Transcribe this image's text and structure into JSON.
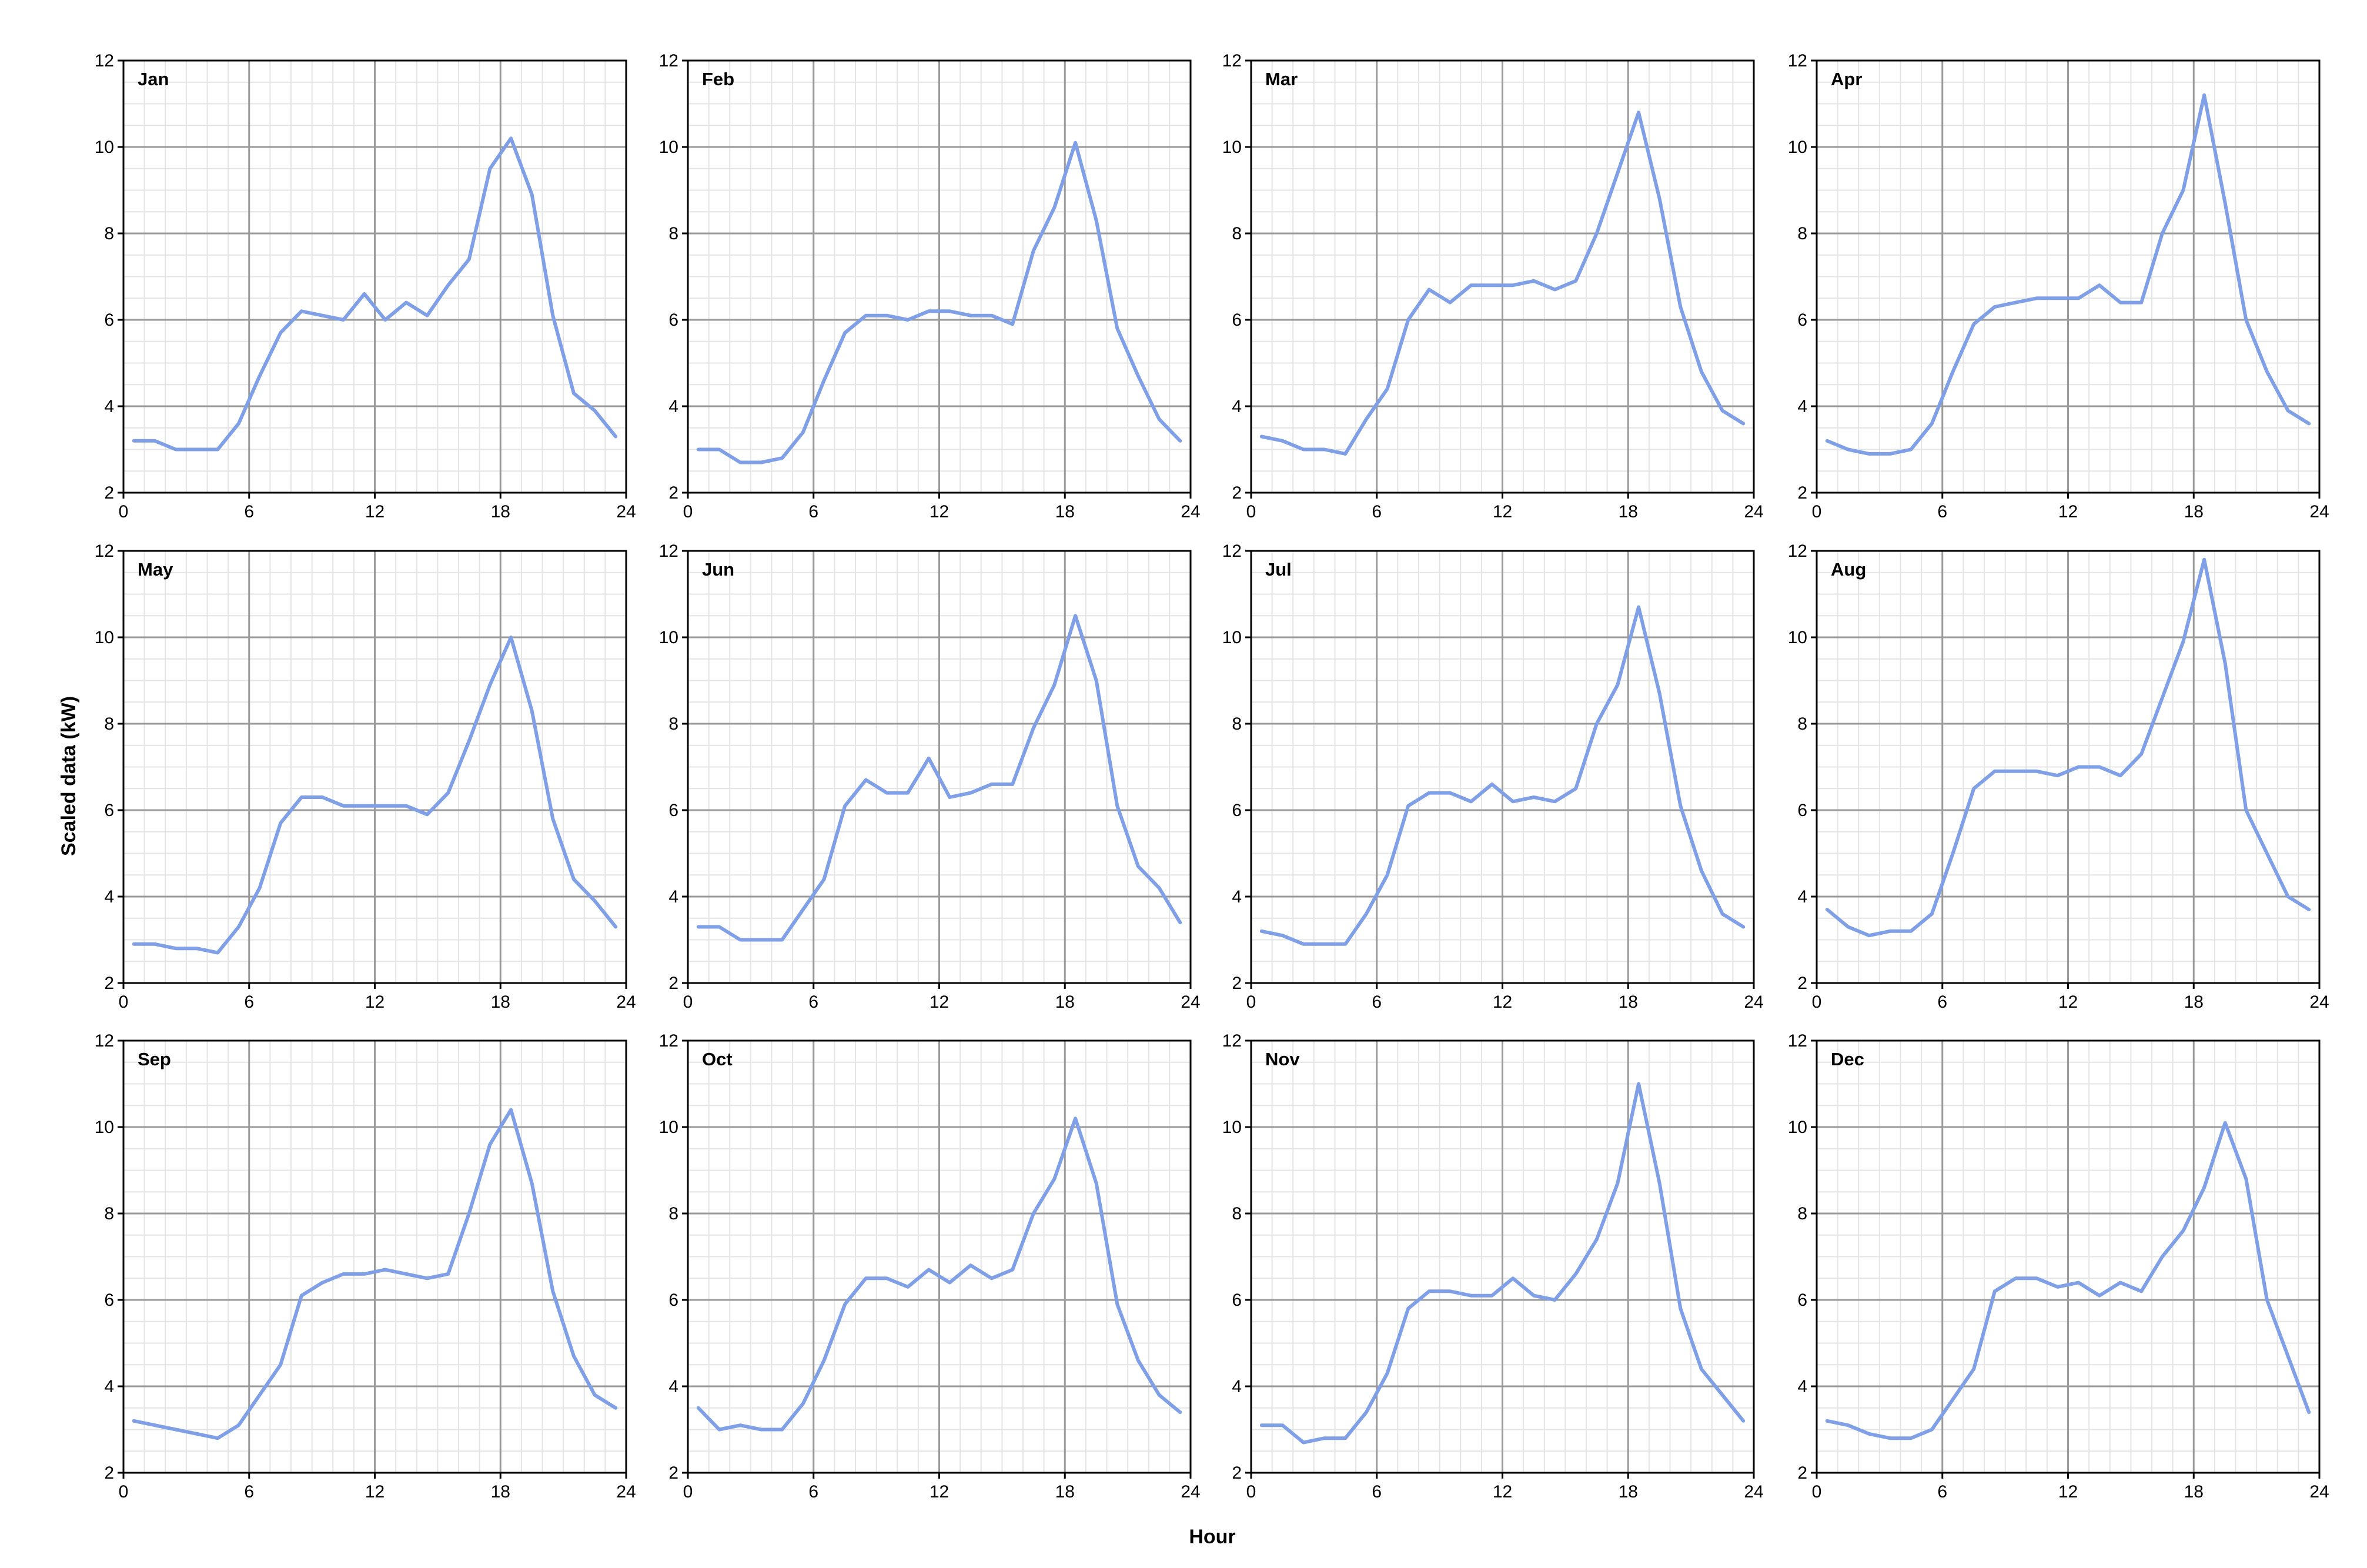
{
  "chart_data": {
    "type": "line",
    "layout": "small-multiples",
    "xlabel": "Hour",
    "ylabel": "Scaled data (kW)",
    "xlim": [
      0,
      24
    ],
    "ylim": [
      2,
      12
    ],
    "x_ticks": [
      0,
      6,
      12,
      18,
      24
    ],
    "y_ticks": [
      2,
      4,
      6,
      8,
      10,
      12
    ],
    "grid": true,
    "line_color": "#7f9fe6",
    "x": [
      0.5,
      1.5,
      2.5,
      3.5,
      4.5,
      5.5,
      6.5,
      7.5,
      8.5,
      9.5,
      10.5,
      11.5,
      12.5,
      13.5,
      14.5,
      15.5,
      16.5,
      17.5,
      18.5,
      19.5,
      20.5,
      21.5,
      22.5,
      23.5
    ],
    "panels": [
      {
        "title": "Jan",
        "values": [
          3.2,
          3.2,
          3.0,
          3.0,
          3.0,
          3.6,
          4.7,
          5.7,
          6.2,
          6.1,
          6.0,
          6.6,
          6.0,
          6.4,
          6.1,
          6.8,
          7.4,
          9.5,
          10.2,
          8.9,
          6.1,
          4.3,
          3.9,
          3.3
        ]
      },
      {
        "title": "Feb",
        "values": [
          3.0,
          3.0,
          2.7,
          2.7,
          2.8,
          3.4,
          4.6,
          5.7,
          6.1,
          6.1,
          6.0,
          6.2,
          6.2,
          6.1,
          6.1,
          5.9,
          7.6,
          8.6,
          10.1,
          8.3,
          5.8,
          4.7,
          3.7,
          3.2
        ]
      },
      {
        "title": "Mar",
        "values": [
          3.3,
          3.2,
          3.0,
          3.0,
          2.9,
          3.7,
          4.4,
          6.0,
          6.7,
          6.4,
          6.8,
          6.8,
          6.8,
          6.9,
          6.7,
          6.9,
          8.0,
          9.4,
          10.8,
          8.8,
          6.3,
          4.8,
          3.9,
          3.6
        ]
      },
      {
        "title": "Apr",
        "values": [
          3.2,
          3.0,
          2.9,
          2.9,
          3.0,
          3.6,
          4.8,
          5.9,
          6.3,
          6.4,
          6.5,
          6.5,
          6.5,
          6.8,
          6.4,
          6.4,
          8.0,
          9.0,
          11.2,
          8.7,
          6.0,
          4.8,
          3.9,
          3.6
        ]
      },
      {
        "title": "May",
        "values": [
          2.9,
          2.9,
          2.8,
          2.8,
          2.7,
          3.3,
          4.2,
          5.7,
          6.3,
          6.3,
          6.1,
          6.1,
          6.1,
          6.1,
          5.9,
          6.4,
          7.6,
          8.9,
          10.0,
          8.3,
          5.8,
          4.4,
          3.9,
          3.3
        ]
      },
      {
        "title": "Jun",
        "values": [
          3.3,
          3.3,
          3.0,
          3.0,
          3.0,
          3.7,
          4.4,
          6.1,
          6.7,
          6.4,
          6.4,
          7.2,
          6.3,
          6.4,
          6.6,
          6.6,
          7.9,
          8.9,
          10.5,
          9.0,
          6.1,
          4.7,
          4.2,
          3.4
        ]
      },
      {
        "title": "Jul",
        "values": [
          3.2,
          3.1,
          2.9,
          2.9,
          2.9,
          3.6,
          4.5,
          6.1,
          6.4,
          6.4,
          6.2,
          6.6,
          6.2,
          6.3,
          6.2,
          6.5,
          8.0,
          8.9,
          10.7,
          8.7,
          6.1,
          4.6,
          3.6,
          3.3
        ]
      },
      {
        "title": "Aug",
        "values": [
          3.7,
          3.3,
          3.1,
          3.2,
          3.2,
          3.6,
          5.0,
          6.5,
          6.9,
          6.9,
          6.9,
          6.8,
          7.0,
          7.0,
          6.8,
          7.3,
          8.6,
          9.9,
          11.8,
          9.4,
          6.0,
          5.0,
          4.0,
          3.7
        ]
      },
      {
        "title": "Sep",
        "values": [
          3.2,
          3.1,
          3.0,
          2.9,
          2.8,
          3.1,
          3.8,
          4.5,
          6.1,
          6.4,
          6.6,
          6.6,
          6.7,
          6.6,
          6.5,
          6.6,
          8.0,
          9.6,
          10.4,
          8.7,
          6.2,
          4.7,
          3.8,
          3.5
        ]
      },
      {
        "title": "Oct",
        "values": [
          3.5,
          3.0,
          3.1,
          3.0,
          3.0,
          3.6,
          4.6,
          5.9,
          6.5,
          6.5,
          6.3,
          6.7,
          6.4,
          6.8,
          6.5,
          6.7,
          8.0,
          8.8,
          10.2,
          8.7,
          5.9,
          4.6,
          3.8,
          3.4
        ]
      },
      {
        "title": "Nov",
        "values": [
          3.1,
          3.1,
          2.7,
          2.8,
          2.8,
          3.4,
          4.3,
          5.8,
          6.2,
          6.2,
          6.1,
          6.1,
          6.5,
          6.1,
          6.0,
          6.6,
          7.4,
          8.7,
          11.0,
          8.7,
          5.8,
          4.4,
          3.8,
          3.2
        ]
      },
      {
        "title": "Dec",
        "values": [
          3.2,
          3.1,
          2.9,
          2.8,
          2.8,
          3.0,
          3.7,
          4.4,
          6.2,
          6.5,
          6.5,
          6.3,
          6.4,
          6.1,
          6.4,
          6.2,
          7.0,
          7.6,
          8.6,
          10.1,
          8.8,
          6.0,
          4.7,
          3.4
        ]
      }
    ]
  }
}
